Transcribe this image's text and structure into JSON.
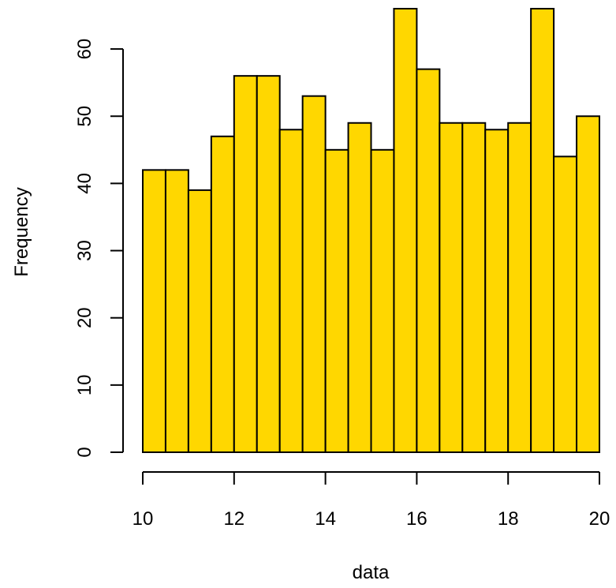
{
  "chart_data": {
    "type": "bar",
    "title": "",
    "xlabel": "data",
    "ylabel": "Frequency",
    "bin_edges": [
      10,
      10.5,
      11,
      11.5,
      12,
      12.5,
      13,
      13.5,
      14,
      14.5,
      15,
      15.5,
      16,
      16.5,
      17,
      17.5,
      18,
      18.5,
      19,
      19.5,
      20
    ],
    "values": [
      42,
      42,
      39,
      47,
      56,
      56,
      48,
      53,
      45,
      49,
      45,
      66,
      57,
      49,
      49,
      48,
      49,
      66,
      44,
      50
    ],
    "xlim": [
      10,
      20
    ],
    "ylim": [
      0,
      66
    ],
    "x_ticks": [
      10,
      12,
      14,
      16,
      18,
      20
    ],
    "y_ticks": [
      0,
      10,
      20,
      30,
      40,
      50,
      60
    ],
    "grid": false,
    "bar_color": "#FFD700",
    "edge_color": "#000000"
  }
}
